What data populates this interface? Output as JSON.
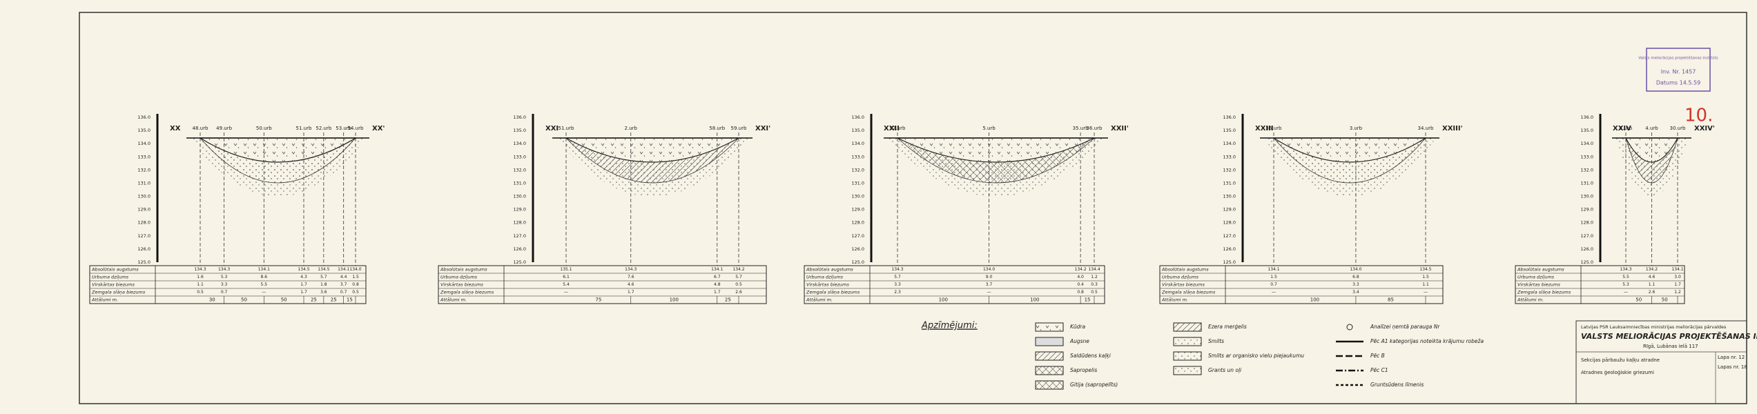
{
  "sheet_number": "10.",
  "stamp": {
    "line1": "Valsts meliorācijas projektēšanas institūts",
    "inv": "Inv. Nr. 1457",
    "date": "Datums 14.5.59"
  },
  "table_headers": [
    "Absolūtais augstums",
    "Urbuma dziļums",
    "Virskārtas biezums",
    "Zemgala slāņa biezums",
    "Attālumi m."
  ],
  "sections": [
    {
      "label_left": "XX",
      "label_right": "XX'",
      "boreholes": [
        "48.urb",
        "49.urb",
        "50.urb",
        "51.urb",
        "52.urb",
        "53.urb",
        "54.urb"
      ],
      "axis": [
        "136.0",
        "135.0",
        "134.0",
        "133.0",
        "132.0",
        "131.0",
        "130.0",
        "129.0",
        "128.0",
        "127.0",
        "126.0",
        "125.0"
      ],
      "rows": [
        [
          "134.3",
          "134.3",
          "134.1",
          "134.5",
          "134.5",
          "134.1",
          "134.0"
        ],
        [
          "1.6",
          "5.3",
          "8.6",
          "4.3",
          "5.7",
          "4.4",
          "1.5"
        ],
        [
          "1.1",
          "3.3",
          "5.5",
          "1.7",
          "1.8",
          "3.7",
          "0.8"
        ],
        [
          "0.5",
          "0.7",
          "—",
          "1.7",
          "3.6",
          "0.7",
          "0.5"
        ]
      ],
      "distances": [
        "30",
        "50",
        "50",
        "25",
        "25",
        "15"
      ]
    },
    {
      "label_left": "XXI",
      "label_right": "XXI'",
      "boreholes": [
        "51.urb",
        "2.urb",
        "58.urb",
        "59.urb"
      ],
      "axis": [
        "136.0",
        "135.0",
        "134.0",
        "133.0",
        "132.0",
        "131.0",
        "130.0",
        "129.0",
        "128.0",
        "127.0",
        "126.0",
        "125.0"
      ],
      "rows": [
        [
          "135.1",
          "134.3",
          "134.1",
          "134.2"
        ],
        [
          "6.1",
          "7.6",
          "6.7",
          "5.7"
        ],
        [
          "5.4",
          "4.6",
          "4.8",
          "0.5"
        ],
        [
          "—",
          "1.7",
          "1.7",
          "2.6"
        ]
      ],
      "distances": [
        "75",
        "100",
        "25"
      ]
    },
    {
      "label_left": "XXII",
      "label_right": "XXII'",
      "boreholes": [
        "52.urb",
        "5.urb",
        "35.urb",
        "36.urb"
      ],
      "axis": [
        "136.0",
        "135.0",
        "134.0",
        "133.0",
        "132.0",
        "131.0",
        "130.0",
        "129.0",
        "128.0",
        "127.0",
        "126.0",
        "125.0"
      ],
      "rows": [
        [
          "134.3",
          "134.0",
          "134.2",
          "134.4"
        ],
        [
          "5.7",
          "9.0",
          "4.0",
          "1.2"
        ],
        [
          "3.3",
          "3.7",
          "0.4",
          "0.3"
        ],
        [
          "2.3",
          "—",
          "0.8",
          "0.5"
        ]
      ],
      "distances": [
        "100",
        "100",
        "15"
      ]
    },
    {
      "label_left": "XXIII",
      "label_right": "XXIII'",
      "boreholes": [
        "36.urb",
        "3.urb",
        "34.urb"
      ],
      "axis": [
        "136.0",
        "135.0",
        "134.0",
        "133.0",
        "132.0",
        "131.0",
        "130.0",
        "129.0",
        "128.0",
        "127.0",
        "126.0",
        "125.0"
      ],
      "rows": [
        [
          "134.1",
          "134.0",
          "134.5"
        ],
        [
          "1.5",
          "6.8",
          "1.5"
        ],
        [
          "0.7",
          "3.3",
          "1.1"
        ],
        [
          "—",
          "3.4",
          "—"
        ]
      ],
      "distances": [
        "100",
        "85"
      ]
    },
    {
      "label_left": "XXIV",
      "label_right": "XXIV'",
      "boreholes": [
        "1.urb",
        "4.urb",
        "30.urb"
      ],
      "axis": [
        "136.0",
        "135.0",
        "134.0",
        "133.0",
        "132.0",
        "131.0",
        "130.0",
        "129.0",
        "128.0",
        "127.0",
        "126.0",
        "125.0"
      ],
      "rows": [
        [
          "134.3",
          "134.2",
          "134.1"
        ],
        [
          "5.5",
          "4.6",
          "3.0"
        ],
        [
          "5.3",
          "1.1",
          "1.7"
        ],
        [
          "—",
          "2.6",
          "1.2"
        ]
      ],
      "distances": [
        "50",
        "50"
      ]
    }
  ],
  "legend": {
    "title": "Apzīmējumi:",
    "materials": [
      "Kūdra",
      "Augsne",
      "Saldūdens kaļķi",
      "Sapropelis",
      "Gitija (sapropelīts)",
      "Ezera merģelis",
      "Smilts",
      "Smilts ar organisko vielu piejaukumu",
      "Grants un oļi"
    ],
    "symbols": [
      "Analīzei ņemtā parauga Nr",
      "Pēc A1 kategorijas noteikta krājumu robeža",
      "Pēc B",
      "Pēc C1",
      "Gruntsūdens līmenis"
    ]
  },
  "title_block": {
    "ministry": "Latvijas PSR Lauksaimniecības ministrijas meliorācijas pārvaldes",
    "institute": "VALSTS MELIORĀCIJAS PROJEKTĒŠANAS INSTITŪTS",
    "address": "Rīgā, Lubānas ielā 117",
    "object": "Sekcijas pārbaužu kaļķu atradne",
    "subject": "Atradnes ģeoloģiskie griezumi",
    "sheet": "Lapa nr. 12",
    "sheets": "Lapas nr. 18"
  }
}
